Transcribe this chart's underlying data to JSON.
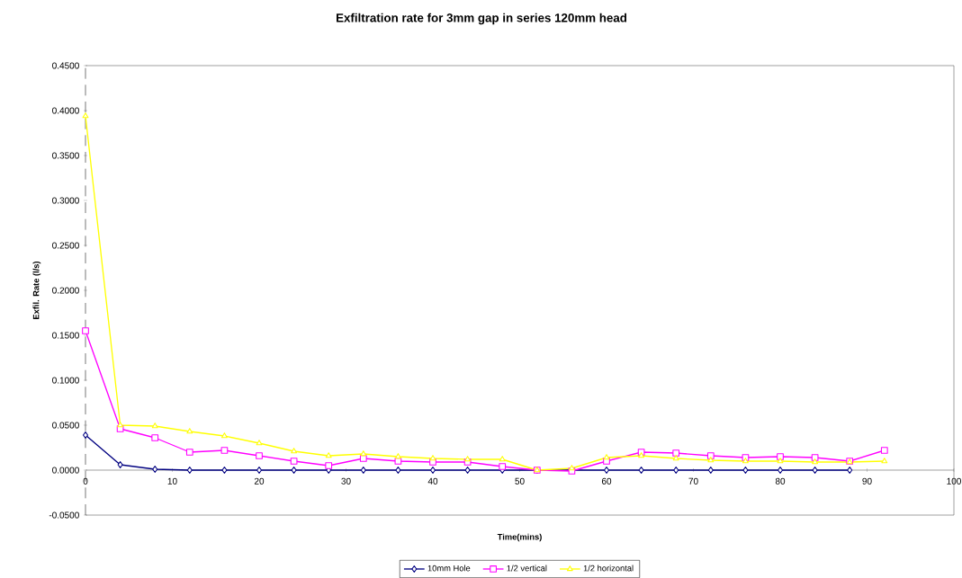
{
  "chart_data": {
    "type": "line",
    "title": "Exfiltration rate for 3mm gap in series 120mm head",
    "xlabel": "Time(mins)",
    "ylabel": "Exfil. Rate (l/s)",
    "x": [
      0,
      4,
      8,
      12,
      16,
      20,
      24,
      28,
      32,
      36,
      40,
      44,
      48,
      52,
      56,
      60,
      64,
      68,
      72,
      76,
      80,
      84,
      88,
      92
    ],
    "series": [
      {
        "name": "10mm Hole",
        "color": "#000080",
        "marker": "diamond",
        "values": [
          0.039,
          0.006,
          0.001,
          0,
          0,
          0,
          0,
          0,
          0,
          0,
          0,
          0,
          0,
          0,
          0,
          0,
          0,
          0,
          0,
          0,
          0,
          0,
          0,
          null
        ]
      },
      {
        "name": "1/2 vertical",
        "color": "#ff00ff",
        "marker": "square",
        "values": [
          0.155,
          0.046,
          0.036,
          0.02,
          0.022,
          0.016,
          0.01,
          0.005,
          0.013,
          0.01,
          0.009,
          0.009,
          0.004,
          0,
          -0.001,
          0.01,
          0.02,
          0.019,
          0.016,
          0.014,
          0.015,
          0.014,
          0.01,
          0.022
        ]
      },
      {
        "name": "1/2 horizontal",
        "color": "#ffff00",
        "marker": "triangle",
        "values": [
          0.394,
          0.05,
          0.049,
          0.043,
          0.038,
          0.03,
          0.021,
          0.016,
          0.018,
          0.015,
          0.013,
          0.012,
          0.012,
          0,
          0.002,
          0.014,
          0.016,
          0.013,
          0.011,
          0.01,
          0.01,
          0.009,
          0.009,
          0.01
        ]
      }
    ],
    "xlim": [
      0,
      100
    ],
    "xticks": [
      0,
      10,
      20,
      30,
      40,
      50,
      60,
      70,
      80,
      90,
      100
    ],
    "ylim": [
      -0.05,
      0.45
    ],
    "yticks": [
      {
        "value": -0.05,
        "label": "-0.0500"
      },
      {
        "value": 0,
        "label": "0.0000"
      },
      {
        "value": 0.05,
        "label": "0.0500"
      },
      {
        "value": 0.1,
        "label": "0.1000"
      },
      {
        "value": 0.15,
        "label": "0.1500"
      },
      {
        "value": 0.2,
        "label": "0.2000"
      },
      {
        "value": 0.25,
        "label": "0.2500"
      },
      {
        "value": 0.3,
        "label": "0.3000"
      },
      {
        "value": 0.35,
        "label": "0.3500"
      },
      {
        "value": 0.4,
        "label": "0.4000"
      },
      {
        "value": 0.45,
        "label": "0.4500"
      }
    ],
    "grid": false,
    "legend": "bottom",
    "line_style": "solid"
  }
}
